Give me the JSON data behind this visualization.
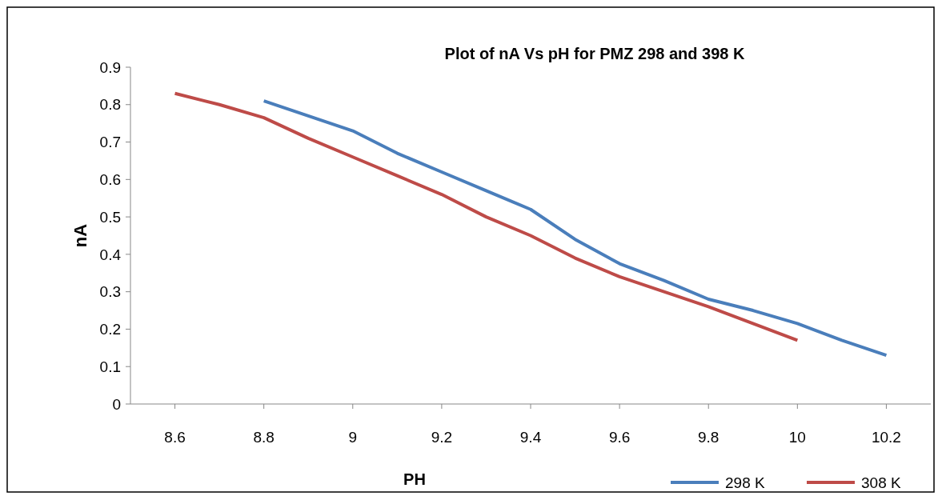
{
  "chart_data": {
    "type": "line",
    "title": "Plot of nA Vs pH for PMZ 298 and 398 K",
    "xlabel": "PH",
    "ylabel": "nA",
    "xlim": [
      8.5,
      10.3
    ],
    "xticks": [
      8.6,
      8.8,
      9,
      9.2,
      9.4,
      9.6,
      9.8,
      10,
      10.2
    ],
    "ylim": [
      0,
      0.9
    ],
    "yticks": [
      0,
      0.1,
      0.2,
      0.3,
      0.4,
      0.5,
      0.6,
      0.7,
      0.8,
      0.9
    ],
    "grid": false,
    "legend": "bottom right",
    "marker": "none",
    "line_style": "solid",
    "series": [
      {
        "name": "298 K",
        "color": "#4a7ebb",
        "x": [
          8.8,
          8.9,
          9.0,
          9.1,
          9.2,
          9.3,
          9.4,
          9.5,
          9.6,
          9.7,
          9.8,
          9.9,
          10.0,
          10.1,
          10.2
        ],
        "values": [
          0.81,
          0.77,
          0.73,
          0.67,
          0.62,
          0.57,
          0.52,
          0.44,
          0.375,
          0.33,
          0.28,
          0.25,
          0.215,
          0.17,
          0.13
        ]
      },
      {
        "name": "308 K",
        "color": "#be4b48",
        "x": [
          8.6,
          8.7,
          8.8,
          8.9,
          9.0,
          9.1,
          9.2,
          9.3,
          9.4,
          9.5,
          9.6,
          9.7,
          9.8,
          9.9,
          10.0
        ],
        "values": [
          0.83,
          0.8,
          0.765,
          0.71,
          0.66,
          0.61,
          0.56,
          0.5,
          0.45,
          0.39,
          0.34,
          0.3,
          0.26,
          0.215,
          0.17
        ]
      }
    ]
  }
}
